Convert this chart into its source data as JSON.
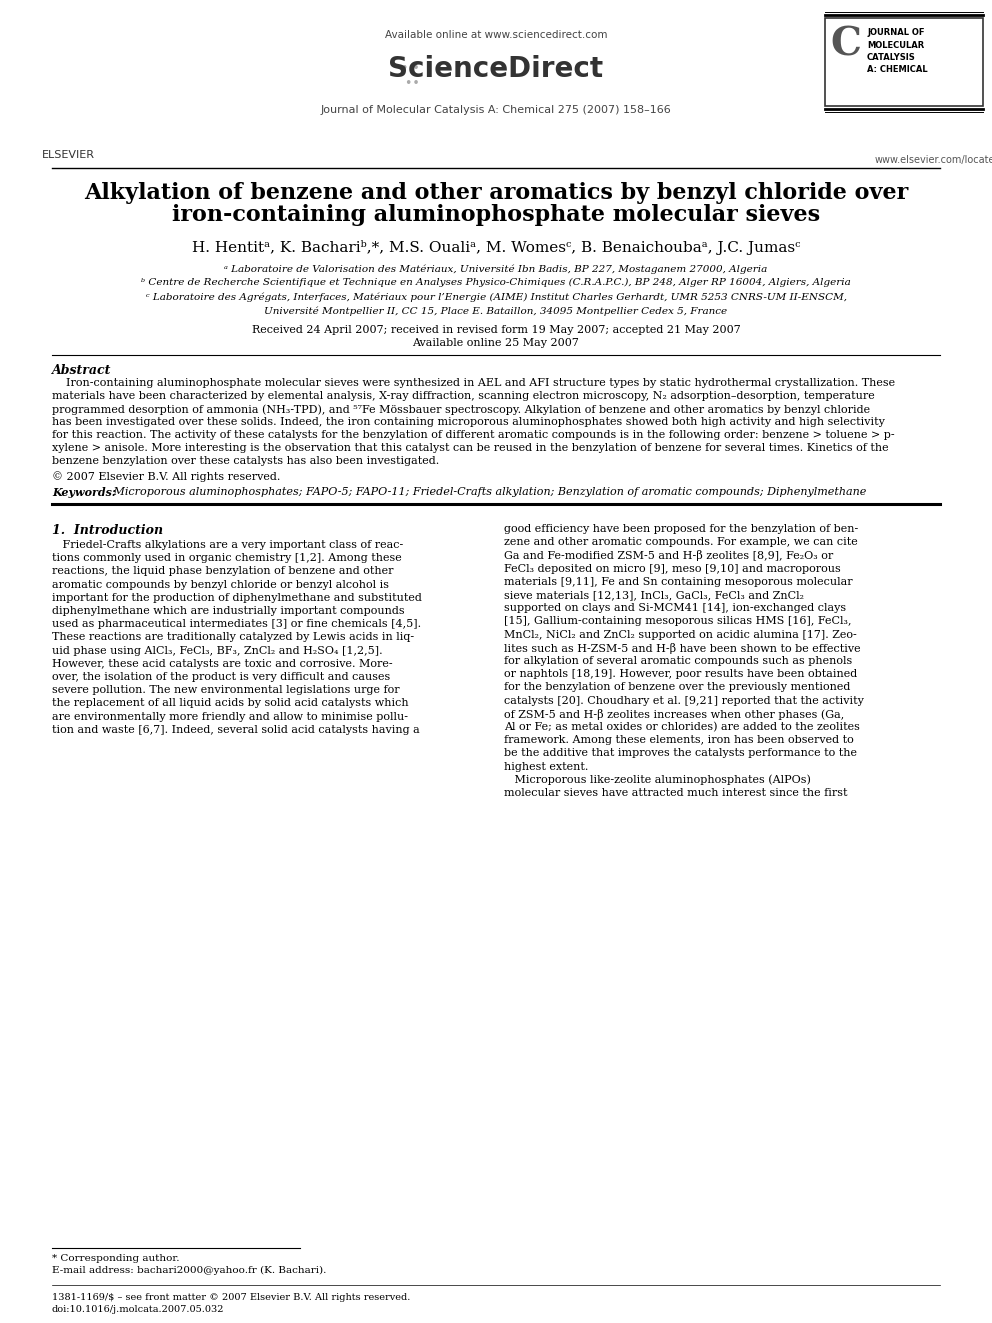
{
  "bg_color": "#ffffff",
  "available_online": "Available online at www.sciencedirect.com",
  "journal_line": "Journal of Molecular Catalysis A: Chemical 275 (2007) 158–166",
  "website": "www.elsevier.com/locate/molcata",
  "title_line1": "Alkylation of benzene and other aromatics by benzyl chloride over",
  "title_line2": "iron-containing aluminophosphate molecular sieves",
  "authors": "H. Hentitᵃ, K. Bachariᵇ,*, M.S. Oualiᵃ, M. Womesᶜ, B. Benaichoubaᵃ, J.C. Jumasᶜ",
  "affil_a": "ᵃ Laboratoire de Valorisation des Matériaux, Université Ibn Badis, BP 227, Mostaganem 27000, Algeria",
  "affil_b": "ᵇ Centre de Recherche Scientifique et Technique en Analyses Physico-Chimiques (C.R.A.P.C.), BP 248, Alger RP 16004, Algiers, Algeria",
  "affil_c1": "ᶜ Laboratoire des Agrégats, Interfaces, Matériaux pour l’Energie (AIME) Institut Charles Gerhardt, UMR 5253 CNRS-UM II-ENSCM,",
  "affil_c2": "Université Montpellier II, CC 15, Place E. Bataillon, 34095 Montpellier Cedex 5, France",
  "dates": "Received 24 April 2007; received in revised form 19 May 2007; accepted 21 May 2007",
  "online": "Available online 25 May 2007",
  "abstract_title": "Abstract",
  "abs_lines": [
    "    Iron-containing aluminophosphate molecular sieves were synthesized in AEL and AFI structure types by static hydrothermal crystallization. These",
    "materials have been characterized by elemental analysis, X-ray diffraction, scanning electron microscopy, N₂ adsorption–desorption, temperature",
    "programmed desorption of ammonia (NH₃-TPD), and ⁵⁷Fe Mössbauer spectroscopy. Alkylation of benzene and other aromatics by benzyl chloride",
    "has been investigated over these solids. Indeed, the iron containing microporous aluminophosphates showed both high activity and high selectivity",
    "for this reaction. The activity of these catalysts for the benzylation of different aromatic compounds is in the following order: benzene > toluene > p-",
    "xylene > anisole. More interesting is the observation that this catalyst can be reused in the benzylation of benzene for several times. Kinetics of the",
    "benzene benzylation over these catalysts has also been investigated."
  ],
  "copyright": "© 2007 Elsevier B.V. All rights reserved.",
  "keywords_label": "Keywords: ",
  "keywords_text": " Microporous aluminophosphates; FAPO-5; FAPO-11; Friedel-Crafts alkylation; Benzylation of aromatic compounds; Diphenylmethane",
  "section1_title": "1.  Introduction",
  "intro_left_lines": [
    "   Friedel-Crafts alkylations are a very important class of reac-",
    "tions commonly used in organic chemistry [1,2]. Among these",
    "reactions, the liquid phase benzylation of benzene and other",
    "aromatic compounds by benzyl chloride or benzyl alcohol is",
    "important for the production of diphenylmethane and substituted",
    "diphenylmethane which are industrially important compounds",
    "used as pharmaceutical intermediates [3] or fine chemicals [4,5].",
    "These reactions are traditionally catalyzed by Lewis acids in liq-",
    "uid phase using AlCl₃, FeCl₃, BF₃, ZnCl₂ and H₂SO₄ [1,2,5].",
    "However, these acid catalysts are toxic and corrosive. More-",
    "over, the isolation of the product is very difficult and causes",
    "severe pollution. The new environmental legislations urge for",
    "the replacement of all liquid acids by solid acid catalysts which",
    "are environmentally more friendly and allow to minimise pollu-",
    "tion and waste [6,7]. Indeed, several solid acid catalysts having a"
  ],
  "intro_right_lines": [
    "good efficiency have been proposed for the benzylation of ben-",
    "zene and other aromatic compounds. For example, we can cite",
    "Ga and Fe-modified ZSM-5 and H-β zeolites [8,9], Fe₂O₃ or",
    "FeCl₃ deposited on micro [9], meso [9,10] and macroporous",
    "materials [9,11], Fe and Sn containing mesoporous molecular",
    "sieve materials [12,13], InCl₃, GaCl₃, FeCl₃ and ZnCl₂",
    "supported on clays and Si-MCM41 [14], ion-exchanged clays",
    "[15], Gallium-containing mesoporous silicas HMS [16], FeCl₃,",
    "MnCl₂, NiCl₂ and ZnCl₂ supported on acidic alumina [17]. Zeo-",
    "lites such as H-ZSM-5 and H-β have been shown to be effective",
    "for alkylation of several aromatic compounds such as phenols",
    "or naphtols [18,19]. However, poor results have been obtained",
    "for the benzylation of benzene over the previously mentioned",
    "catalysts [20]. Choudhary et al. [9,21] reported that the activity",
    "of ZSM-5 and H-β zeolites increases when other phases (Ga,",
    "Al or Fe; as metal oxides or chlorides) are added to the zeolites",
    "framework. Among these elements, iron has been observed to",
    "be the additive that improves the catalysts performance to the",
    "highest extent.",
    "   Microporous like-zeolite aluminophosphates (AlPOs)",
    "molecular sieves have attracted much interest since the first"
  ],
  "footnote_star": "* Corresponding author.",
  "footnote_email": "E-mail address: bachari2000@yahoo.fr (K. Bachari).",
  "footer_issn": "1381-1169/$ – see front matter © 2007 Elsevier B.V. All rights reserved.",
  "footer_doi": "doi:10.1016/j.molcata.2007.05.032",
  "elsevier_text": "ELSEVIER",
  "journal_box_text": "JOURNAL OF\nMOLECULAR\nCATALYSIS\nA: CHEMICAL",
  "sciencedirect": "ScienceDirect"
}
